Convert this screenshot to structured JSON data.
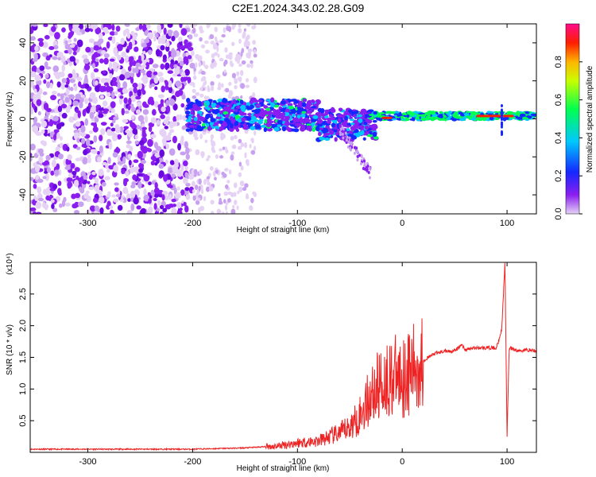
{
  "title": "C2E1.2024.343.02.28.G09",
  "chart_data": [
    {
      "type": "heatmap",
      "xlabel": "Height of straight line (km)",
      "ylabel": "Frequency (Hz)",
      "xlim": [
        -355,
        128
      ],
      "ylim": [
        -50,
        50
      ],
      "xticks": [
        -300,
        -200,
        -100,
        0,
        100
      ],
      "yticks": [
        -40,
        -20,
        0,
        20,
        40
      ],
      "colorbar": {
        "label": "Normalized spectral amplitude",
        "range": [
          0,
          1
        ],
        "ticks": [
          "0.0",
          "0.2",
          "0.4",
          "0.6",
          "0.8"
        ],
        "colormap": "rainbow (light violet -> blue -> cyan -> green -> yellow -> red -> magenta)"
      },
      "features": [
        {
          "region": "x -355 to -200",
          "description": "scattered violet noise across full frequency range"
        },
        {
          "region": "x -200 to -30",
          "description": "band near 0 Hz, blue/cyan with green spots"
        },
        {
          "region": "x -30 to 128",
          "description": "narrow band near 0-2 Hz, green, red near x=-15 and x=75 to 105"
        }
      ]
    },
    {
      "type": "line",
      "xlabel": "Height of straight line (km)",
      "ylabel": "SNR (10 * v/v)",
      "y_multiplier": "(x10⁴)",
      "xlim": [
        -355,
        128
      ],
      "ylim": [
        0,
        3.0
      ],
      "xticks": [
        -300,
        -200,
        -100,
        0,
        100
      ],
      "yticks": [
        "0.5",
        "1.0",
        "1.5",
        "2.0",
        "2.5"
      ],
      "color": "#ee2222",
      "series": [
        {
          "x": [
            -355,
            -250,
            -200,
            -150,
            -120,
            -100,
            -80,
            -60,
            -50,
            -40,
            -30,
            -20,
            -10,
            0,
            10,
            20,
            30,
            40,
            50,
            57,
            60,
            70,
            80,
            90,
            95,
            98,
            100,
            102,
            110,
            120,
            128
          ],
          "y": [
            0.05,
            0.05,
            0.05,
            0.07,
            0.1,
            0.15,
            0.18,
            0.3,
            0.4,
            0.6,
            0.9,
            1.1,
            1.2,
            1.2,
            1.3,
            1.45,
            1.55,
            1.6,
            1.6,
            1.7,
            1.62,
            1.65,
            1.65,
            1.65,
            1.95,
            3.0,
            0.25,
            1.65,
            1.6,
            1.62,
            1.6
          ]
        }
      ]
    }
  ]
}
